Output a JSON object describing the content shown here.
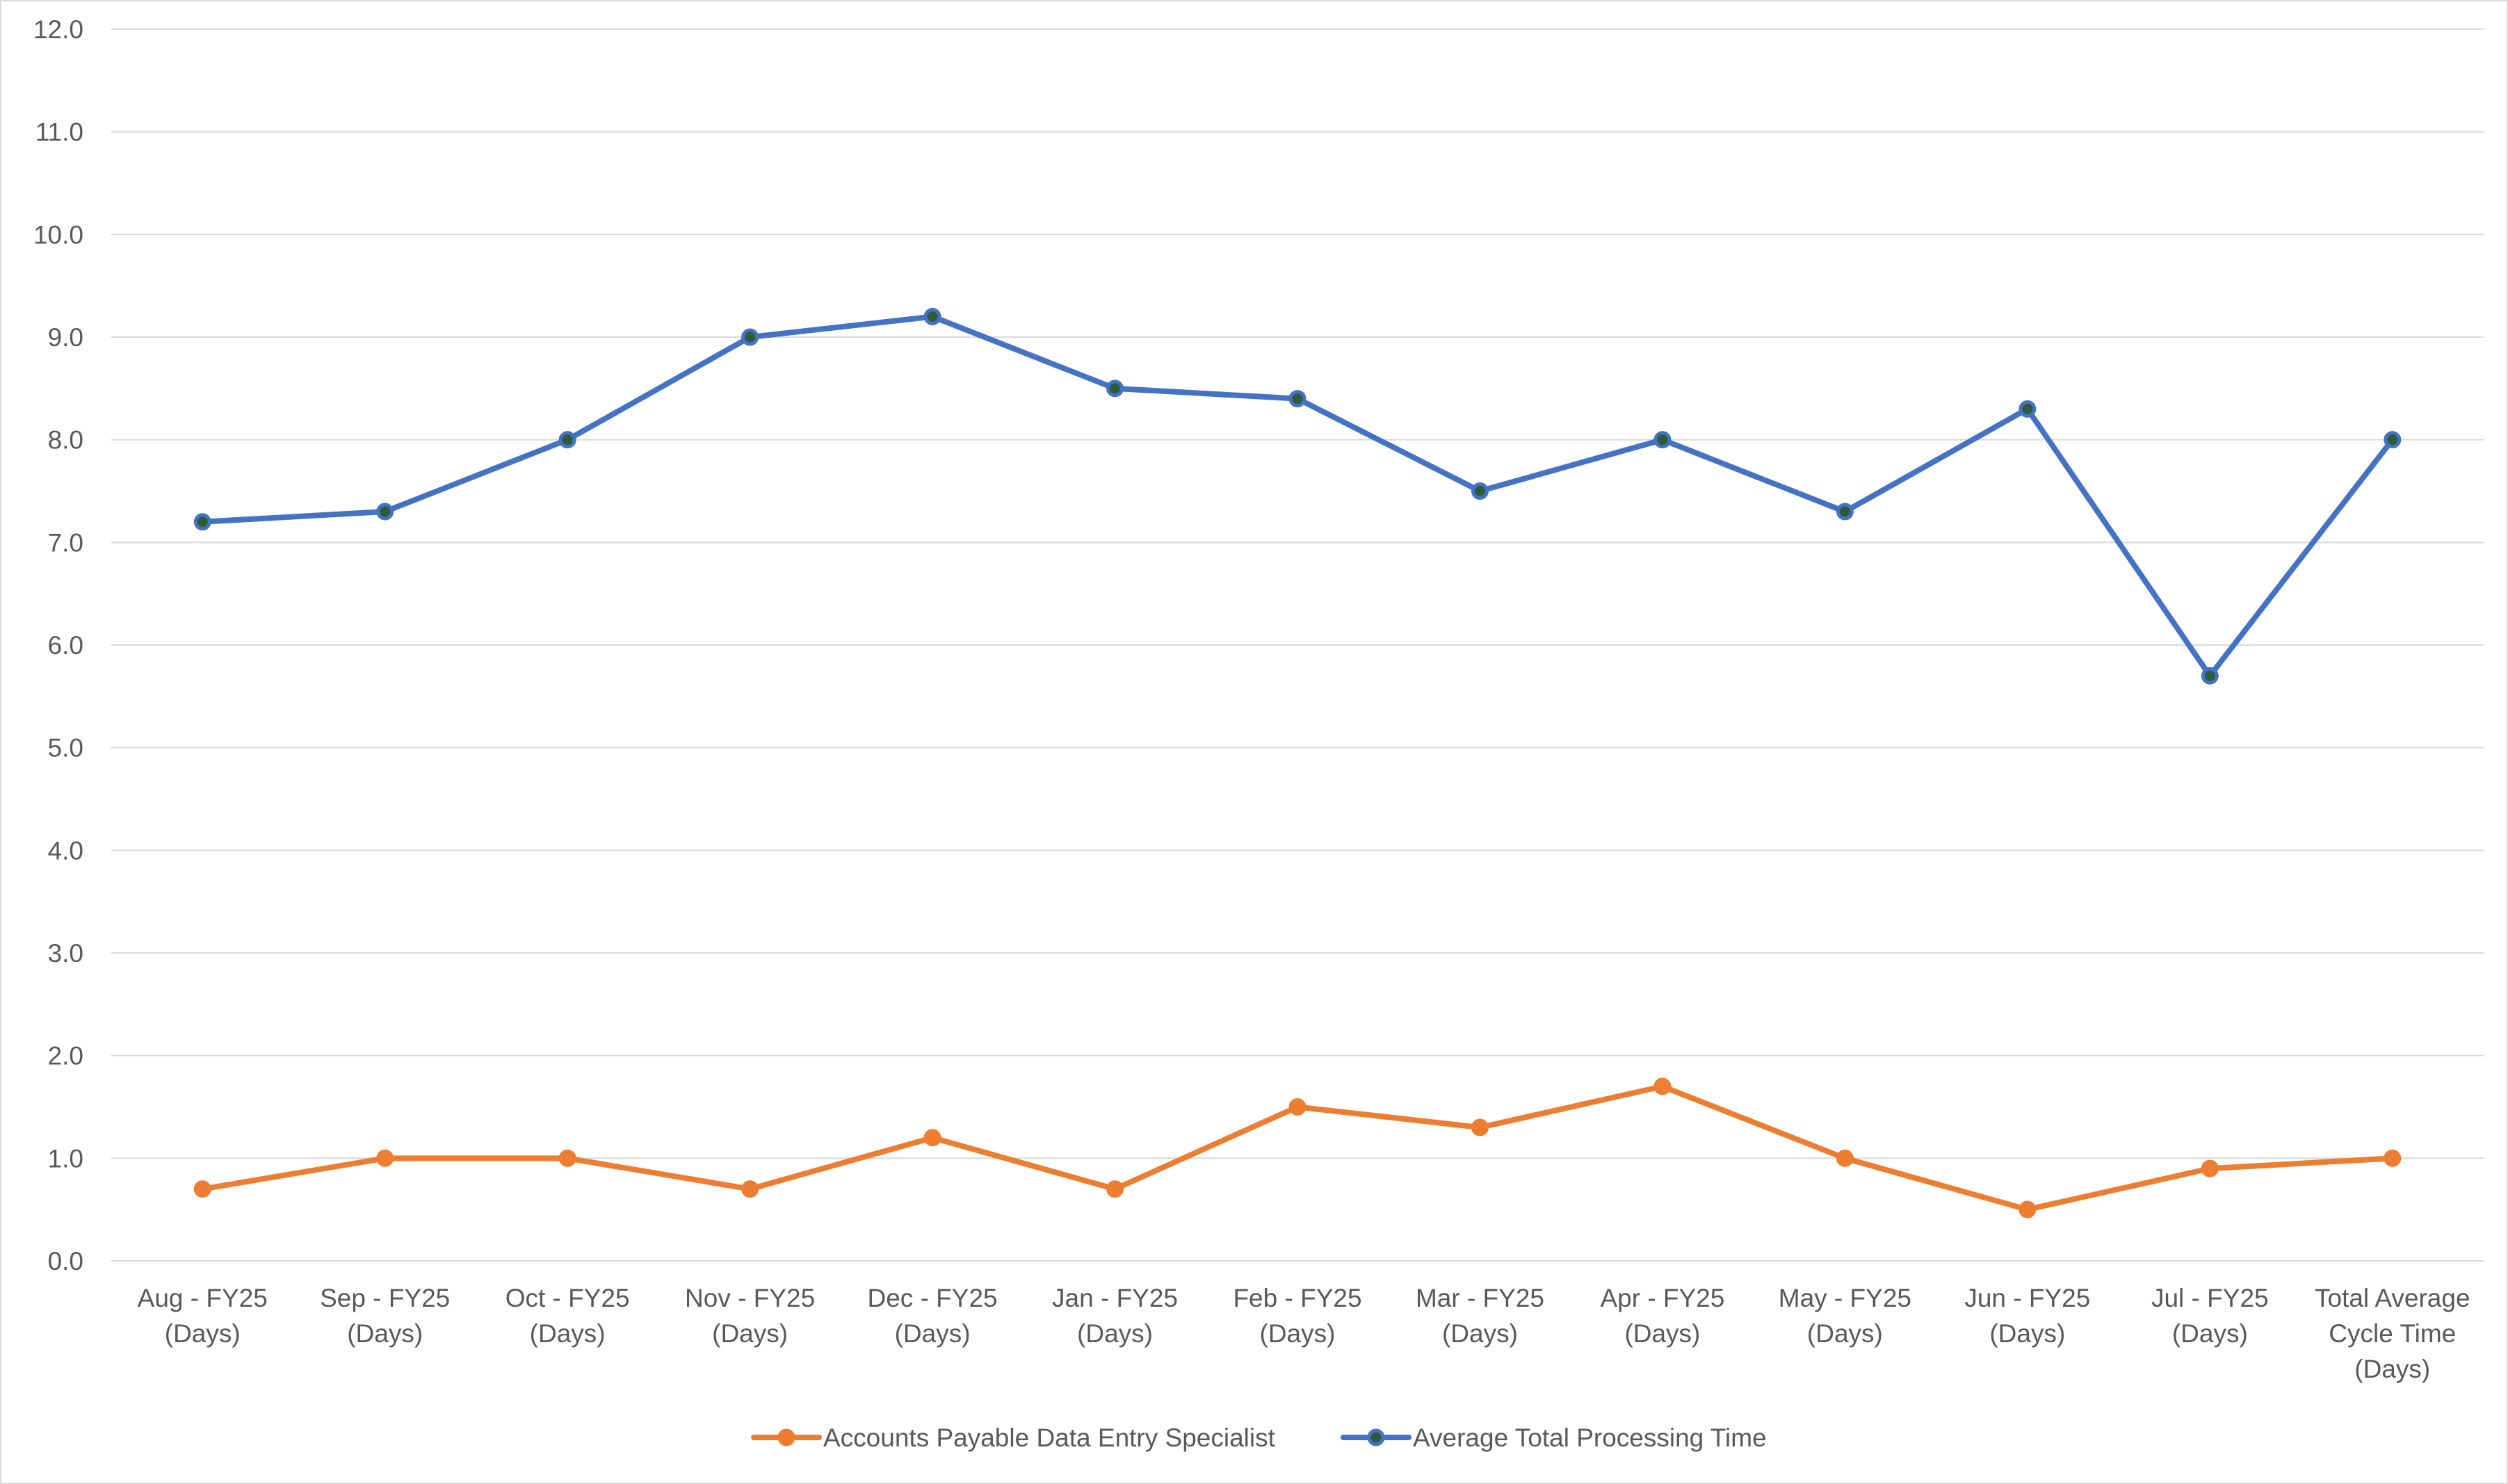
{
  "chart_data": {
    "type": "line",
    "categories": [
      [
        "Aug - FY25",
        "(Days)"
      ],
      [
        "Sep - FY25",
        "(Days)"
      ],
      [
        "Oct - FY25",
        "(Days)"
      ],
      [
        "Nov - FY25",
        "(Days)"
      ],
      [
        "Dec - FY25",
        "(Days)"
      ],
      [
        "Jan - FY25",
        "(Days)"
      ],
      [
        "Feb - FY25",
        "(Days)"
      ],
      [
        "Mar - FY25",
        "(Days)"
      ],
      [
        "Apr - FY25",
        "(Days)"
      ],
      [
        "May - FY25",
        "(Days)"
      ],
      [
        "Jun - FY25",
        "(Days)"
      ],
      [
        "Jul - FY25",
        "(Days)"
      ],
      [
        "Total Average",
        "Cycle Time",
        "(Days)"
      ]
    ],
    "series": [
      {
        "name": "Accounts Payable Data Entry Specialist",
        "color": "#ED7D31",
        "marker_fill": "#ED7D31",
        "values": [
          0.7,
          1.0,
          1.0,
          0.7,
          1.2,
          0.7,
          1.5,
          1.3,
          1.7,
          1.0,
          0.5,
          0.9,
          1.0
        ]
      },
      {
        "name": "Average Total Processing Time",
        "color": "#4472C4",
        "marker_fill": "#2E5C3A",
        "values": [
          7.2,
          7.3,
          8.0,
          9.0,
          9.2,
          8.5,
          8.4,
          7.5,
          8.0,
          7.3,
          8.3,
          5.7,
          8.0
        ]
      }
    ],
    "ylim": [
      0,
      12
    ],
    "yticks": [
      "0.0",
      "1.0",
      "2.0",
      "3.0",
      "4.0",
      "5.0",
      "6.0",
      "7.0",
      "8.0",
      "9.0",
      "10.0",
      "11.0",
      "12.0"
    ],
    "grid": true,
    "legend_position": "bottom",
    "gridline_color": "#d9d9d9",
    "text_color": "#595959"
  }
}
